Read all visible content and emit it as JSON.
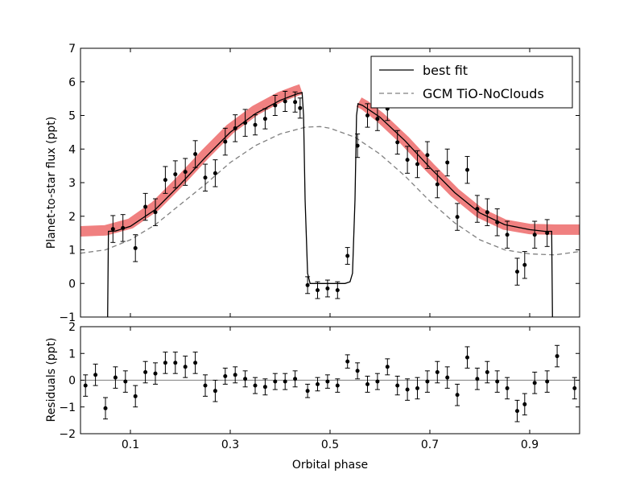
{
  "chart_data": [
    {
      "type": "scatter",
      "panel": "main",
      "xlabel": "",
      "ylabel": "Planet-to-star flux (ppt)",
      "xlim": [
        0.0,
        1.0
      ],
      "ylim": [
        -1,
        7
      ],
      "yticks": [
        -1,
        0,
        1,
        2,
        3,
        4,
        5,
        6,
        7
      ],
      "ytick_labels": [
        "−1",
        "0",
        "1",
        "2",
        "3",
        "4",
        "5",
        "6",
        "7"
      ],
      "legend": {
        "placement": "top-right",
        "entries": [
          {
            "label": "best fit",
            "style": "solid",
            "color": "#000000"
          },
          {
            "label": "GCM TiO-NoClouds",
            "style": "dashed",
            "color": "#808080"
          }
        ]
      },
      "band_color": "#f08080",
      "series": [
        {
          "name": "best fit",
          "style": "line",
          "color": "#000000",
          "x": [
            0.0,
            0.054,
            0.056,
            0.07,
            0.1,
            0.15,
            0.2,
            0.25,
            0.3,
            0.35,
            0.4,
            0.435,
            0.444,
            0.447,
            0.45,
            0.455,
            0.46,
            0.47,
            0.5,
            0.53,
            0.54,
            0.545,
            0.55,
            0.553,
            0.556,
            0.565,
            0.6,
            0.65,
            0.7,
            0.75,
            0.8,
            0.85,
            0.9,
            0.93,
            0.944,
            0.946,
            1.0
          ],
          "y": [
            -1.5,
            -1.5,
            1.55,
            1.56,
            1.7,
            2.2,
            2.95,
            3.75,
            4.5,
            5.05,
            5.45,
            5.65,
            5.68,
            5.0,
            2.5,
            0.3,
            0.0,
            0.0,
            0.0,
            0.0,
            0.05,
            0.3,
            2.5,
            5.0,
            5.35,
            5.3,
            4.95,
            4.25,
            3.45,
            2.7,
            2.1,
            1.75,
            1.6,
            1.55,
            1.55,
            -1.5,
            -1.5
          ]
        },
        {
          "name": "GCM TiO-NoClouds",
          "style": "dashed",
          "color": "#808080",
          "x": [
            0.0,
            0.05,
            0.1,
            0.15,
            0.2,
            0.25,
            0.3,
            0.35,
            0.4,
            0.45,
            0.48,
            0.5,
            0.55,
            0.6,
            0.65,
            0.7,
            0.75,
            0.8,
            0.85,
            0.9,
            0.95,
            1.0
          ],
          "y": [
            0.9,
            1.0,
            1.3,
            1.75,
            2.35,
            2.95,
            3.6,
            4.1,
            4.45,
            4.65,
            4.67,
            4.62,
            4.35,
            3.85,
            3.2,
            2.45,
            1.8,
            1.3,
            1.0,
            0.88,
            0.85,
            0.95
          ]
        },
        {
          "name": "model band (left)",
          "style": "band",
          "x": [
            0.0,
            0.05,
            0.1,
            0.15,
            0.2,
            0.25,
            0.3,
            0.35,
            0.4,
            0.43,
            0.442
          ],
          "y": [
            1.55,
            1.58,
            1.78,
            2.3,
            3.05,
            3.85,
            4.6,
            5.15,
            5.55,
            5.72,
            5.78
          ]
        },
        {
          "name": "model band (right)",
          "style": "band",
          "x": [
            0.558,
            0.57,
            0.6,
            0.65,
            0.7,
            0.75,
            0.8,
            0.85,
            0.9,
            0.95,
            1.0
          ],
          "y": [
            5.4,
            5.3,
            4.95,
            4.25,
            3.45,
            2.7,
            2.1,
            1.75,
            1.62,
            1.6,
            1.6
          ]
        },
        {
          "name": "data",
          "style": "errorbar",
          "color": "#000000",
          "x": [
            0.065,
            0.085,
            0.11,
            0.13,
            0.15,
            0.17,
            0.19,
            0.21,
            0.23,
            0.25,
            0.27,
            0.29,
            0.31,
            0.33,
            0.35,
            0.37,
            0.39,
            0.41,
            0.43,
            0.44,
            0.455,
            0.475,
            0.495,
            0.515,
            0.535,
            0.555,
            0.575,
            0.595,
            0.615,
            0.635,
            0.655,
            0.675,
            0.695,
            0.715,
            0.735,
            0.755,
            0.775,
            0.795,
            0.815,
            0.835,
            0.855,
            0.875,
            0.89,
            0.91,
            0.935
          ],
          "y": [
            1.62,
            1.65,
            1.05,
            2.28,
            2.12,
            3.08,
            3.25,
            3.32,
            3.85,
            3.15,
            3.28,
            4.22,
            4.62,
            4.78,
            4.72,
            4.9,
            5.3,
            5.42,
            5.4,
            5.22,
            -0.05,
            -0.2,
            -0.15,
            -0.2,
            0.82,
            4.1,
            5.0,
            4.9,
            5.2,
            4.2,
            3.68,
            3.55,
            3.82,
            2.95,
            3.6,
            1.98,
            3.38,
            2.22,
            2.12,
            1.82,
            1.45,
            0.35,
            0.55,
            1.45,
            1.5
          ],
          "err": [
            0.4,
            0.4,
            0.4,
            0.4,
            0.4,
            0.4,
            0.4,
            0.4,
            0.4,
            0.4,
            0.4,
            0.4,
            0.4,
            0.4,
            0.3,
            0.3,
            0.3,
            0.3,
            0.3,
            0.3,
            0.25,
            0.25,
            0.25,
            0.25,
            0.25,
            0.35,
            0.35,
            0.35,
            0.35,
            0.35,
            0.4,
            0.4,
            0.4,
            0.4,
            0.4,
            0.4,
            0.4,
            0.4,
            0.4,
            0.4,
            0.4,
            0.4,
            0.4,
            0.4,
            0.4
          ]
        }
      ]
    },
    {
      "type": "scatter",
      "panel": "residuals",
      "xlabel": "Orbital phase",
      "ylabel": "Residuals (ppt)",
      "xlim": [
        0.0,
        1.0
      ],
      "ylim": [
        -2,
        2
      ],
      "xticks": [
        0.1,
        0.3,
        0.5,
        0.7,
        0.9
      ],
      "xtick_labels": [
        "0.1",
        "0.3",
        "0.5",
        "0.7",
        "0.9"
      ],
      "yticks": [
        -2,
        -1,
        0,
        1,
        2
      ],
      "ytick_labels": [
        "−2",
        "−1",
        "0",
        "1",
        "2"
      ],
      "zero_line_color": "#808080",
      "series": [
        {
          "name": "residuals",
          "style": "errorbar",
          "color": "#000000",
          "x": [
            0.01,
            0.03,
            0.05,
            0.07,
            0.09,
            0.11,
            0.13,
            0.15,
            0.17,
            0.19,
            0.21,
            0.23,
            0.25,
            0.27,
            0.29,
            0.31,
            0.33,
            0.35,
            0.37,
            0.39,
            0.41,
            0.43,
            0.455,
            0.475,
            0.495,
            0.515,
            0.535,
            0.555,
            0.575,
            0.595,
            0.615,
            0.635,
            0.655,
            0.675,
            0.695,
            0.715,
            0.735,
            0.755,
            0.775,
            0.795,
            0.815,
            0.835,
            0.855,
            0.875,
            0.89,
            0.91,
            0.935,
            0.955,
            0.99
          ],
          "y": [
            -0.2,
            0.2,
            -1.05,
            0.1,
            -0.05,
            -0.6,
            0.3,
            0.25,
            0.65,
            0.65,
            0.5,
            0.65,
            -0.2,
            -0.4,
            0.15,
            0.2,
            0.05,
            -0.2,
            -0.25,
            -0.05,
            -0.05,
            0.05,
            -0.4,
            -0.15,
            -0.05,
            -0.2,
            0.7,
            0.35,
            -0.15,
            -0.05,
            0.5,
            -0.2,
            -0.35,
            -0.3,
            -0.05,
            0.3,
            0.1,
            -0.55,
            0.85,
            0.05,
            0.3,
            -0.05,
            -0.3,
            -1.15,
            -0.9,
            -0.1,
            -0.05,
            0.9,
            -0.3
          ],
          "err": [
            0.4,
            0.4,
            0.4,
            0.4,
            0.4,
            0.4,
            0.4,
            0.4,
            0.4,
            0.4,
            0.4,
            0.4,
            0.4,
            0.4,
            0.3,
            0.3,
            0.3,
            0.3,
            0.3,
            0.3,
            0.3,
            0.3,
            0.25,
            0.25,
            0.25,
            0.25,
            0.25,
            0.3,
            0.3,
            0.3,
            0.3,
            0.35,
            0.4,
            0.4,
            0.4,
            0.4,
            0.4,
            0.4,
            0.4,
            0.4,
            0.4,
            0.4,
            0.4,
            0.4,
            0.4,
            0.4,
            0.4,
            0.4,
            0.4
          ]
        }
      ]
    }
  ]
}
